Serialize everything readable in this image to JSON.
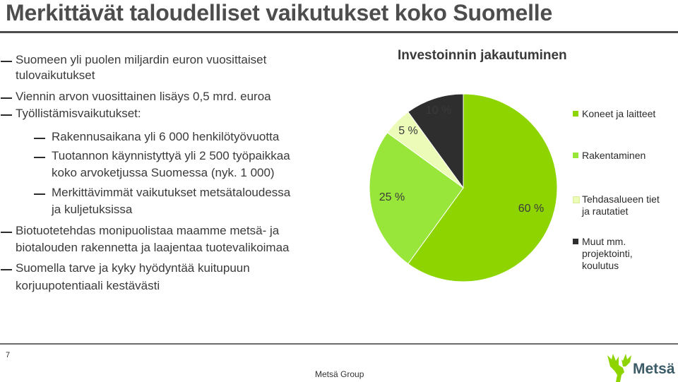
{
  "slide": {
    "title": "Merkittävät taloudelliset vaikutukset koko Suomelle",
    "page_number": "7",
    "footer": "Metsä Group",
    "logo_text": "Metsä"
  },
  "bullets": [
    "Suomeen yli puolen miljardin euron vuosittaiset",
    "tulovaikutukset",
    "Viennin arvon vuosittainen lisäys 0,5 mrd. euroa",
    "Työllistämisvaikutukset:",
    "Rakennusaikana yli 6 000 henkilötyövuotta",
    "Tuotannon käynnistyttyä yli 2 500  työpaikkaa",
    "koko arvoketjussa Suomessa (nyk. 1 000)",
    "Merkittävimmät vaikutukset metsätaloudessa",
    "ja kuljetuksissa",
    "Biotuotetehdas monipuolistaa maamme metsä- ja",
    "biotalouden rakennetta ja laajentaa tuotevalikoimaa",
    "Suomella tarve ja kyky hyödyntää kuitupuun",
    "korjuupotentiaali kestävästi"
  ],
  "chart_data": {
    "type": "pie",
    "title": "Investoinnin jakautuminen",
    "slices": [
      {
        "name": "Koneet ja laitteet",
        "value": 60,
        "label": "60 %",
        "color": "#8ed400"
      },
      {
        "name": "Rakentaminen",
        "value": 25,
        "label": "25 %",
        "color": "#99e63a"
      },
      {
        "name": "Tehdasalueen tiet ja rautatiet",
        "value": 5,
        "label": "5 %",
        "color": "#ecfbb8"
      },
      {
        "name": "Muut mm. projektointi, koulutus",
        "value": 10,
        "label": "10 %",
        "color": "#2e2e2e"
      }
    ],
    "legend": [
      {
        "lines": [
          "Koneet ja laitteet"
        ],
        "color": "#8ed400"
      },
      {
        "lines": [
          "Rakentaminen"
        ],
        "color": "#99e63a"
      },
      {
        "lines": [
          "Tehdasalueen tiet",
          "ja rautatiet"
        ],
        "color": "#ecfbb8"
      },
      {
        "lines": [
          "Muut mm.",
          "projektointi,",
          "koulutus"
        ],
        "color": "#2e2e2e"
      }
    ],
    "legend_position": "right"
  }
}
